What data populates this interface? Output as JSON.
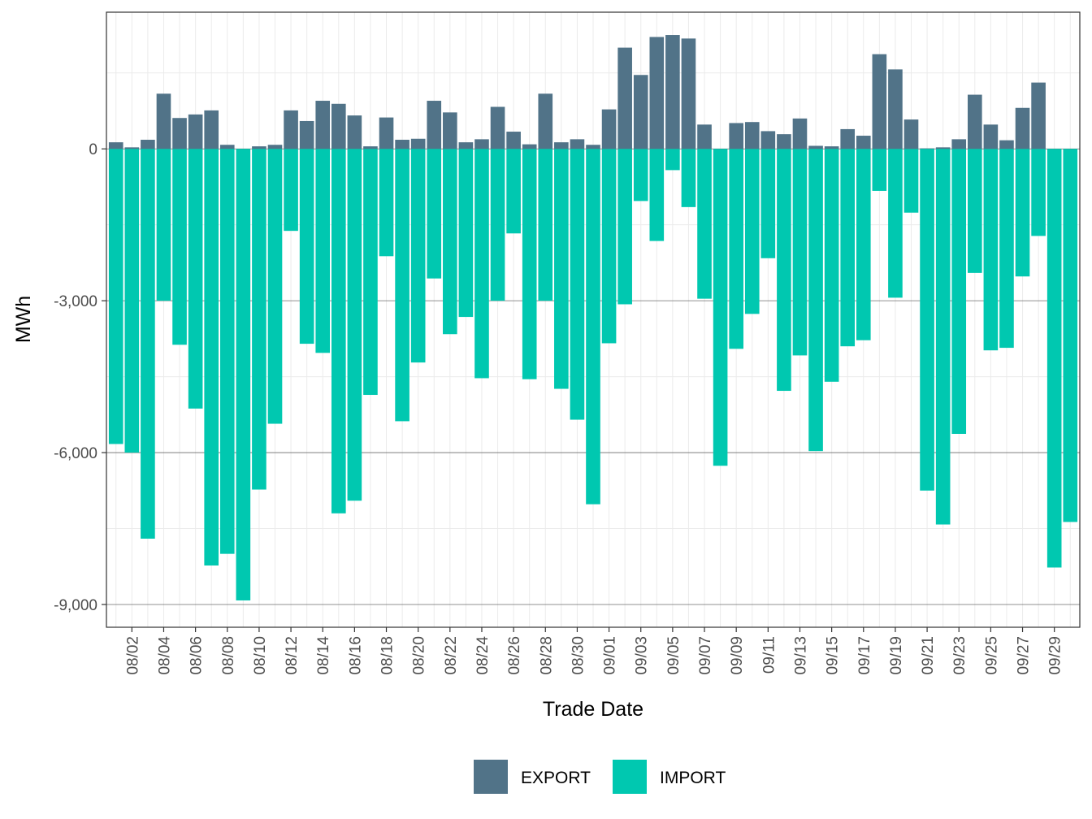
{
  "chart_data": {
    "type": "bar",
    "stacked": true,
    "xlabel": "Trade Date",
    "ylabel": "MWh",
    "ylim": [
      -9450,
      2700
    ],
    "y_ticks": [
      0,
      -3000,
      -6000,
      -9000
    ],
    "y_tick_labels": [
      "0",
      "-3,000",
      "-6,000",
      "-9,000"
    ],
    "grid": true,
    "legend_position": "bottom",
    "colors": {
      "EXPORT": "#517388",
      "IMPORT": "#00c8b0"
    },
    "x_tick_labels": [
      "08/02",
      "08/04",
      "08/06",
      "08/08",
      "08/10",
      "08/12",
      "08/14",
      "08/16",
      "08/18",
      "08/20",
      "08/22",
      "08/24",
      "08/26",
      "08/28",
      "08/30",
      "09/01",
      "09/03",
      "09/05",
      "09/07",
      "09/09",
      "09/11",
      "09/13",
      "09/15",
      "09/17",
      "09/19",
      "09/21",
      "09/23",
      "09/25",
      "09/27",
      "09/29"
    ],
    "categories": [
      "08/01",
      "08/02",
      "08/03",
      "08/04",
      "08/05",
      "08/06",
      "08/07",
      "08/08",
      "08/09",
      "08/10",
      "08/11",
      "08/12",
      "08/13",
      "08/14",
      "08/15",
      "08/16",
      "08/17",
      "08/18",
      "08/19",
      "08/20",
      "08/21",
      "08/22",
      "08/23",
      "08/24",
      "08/25",
      "08/26",
      "08/27",
      "08/28",
      "08/29",
      "08/30",
      "08/31",
      "09/01",
      "09/02",
      "09/03",
      "09/04",
      "09/05",
      "09/06",
      "09/07",
      "09/08",
      "09/09",
      "09/10",
      "09/11",
      "09/12",
      "09/13",
      "09/14",
      "09/15",
      "09/16",
      "09/17",
      "09/18",
      "09/19",
      "09/20",
      "09/21",
      "09/22",
      "09/23",
      "09/24",
      "09/25",
      "09/26",
      "09/27",
      "09/28",
      "09/29",
      "09/30"
    ],
    "series": [
      {
        "name": "EXPORT",
        "values": [
          130,
          30,
          180,
          1090,
          610,
          680,
          760,
          80,
          0,
          50,
          80,
          760,
          550,
          950,
          890,
          660,
          50,
          620,
          180,
          200,
          950,
          720,
          130,
          190,
          830,
          340,
          90,
          1090,
          130,
          190,
          80,
          780,
          2000,
          1460,
          2210,
          2250,
          2180,
          480,
          0,
          510,
          530,
          350,
          290,
          600,
          60,
          50,
          390,
          260,
          1870,
          1570,
          580,
          10,
          30,
          190,
          1070,
          480,
          170,
          810,
          1310,
          0,
          0
        ]
      },
      {
        "name": "IMPORT",
        "values": [
          -5830,
          -6000,
          -7700,
          -3000,
          -3870,
          -5130,
          -8230,
          -8000,
          -8920,
          -6730,
          -5430,
          -1620,
          -3850,
          -4030,
          -7200,
          -6950,
          -4860,
          -2120,
          -5380,
          -4220,
          -2560,
          -3660,
          -3320,
          -4530,
          -3000,
          -1670,
          -4550,
          -3000,
          -4740,
          -5350,
          -7020,
          -3840,
          -3070,
          -1030,
          -1820,
          -420,
          -1150,
          -2960,
          -6260,
          -3950,
          -3260,
          -2160,
          -4780,
          -4080,
          -5970,
          -4600,
          -3900,
          -3780,
          -830,
          -2940,
          -1260,
          -6750,
          -7420,
          -5630,
          -2450,
          -3980,
          -3930,
          -2520,
          -1720,
          -8270,
          -7370
        ]
      }
    ]
  },
  "legend": {
    "export_label": "EXPORT",
    "import_label": "IMPORT"
  }
}
